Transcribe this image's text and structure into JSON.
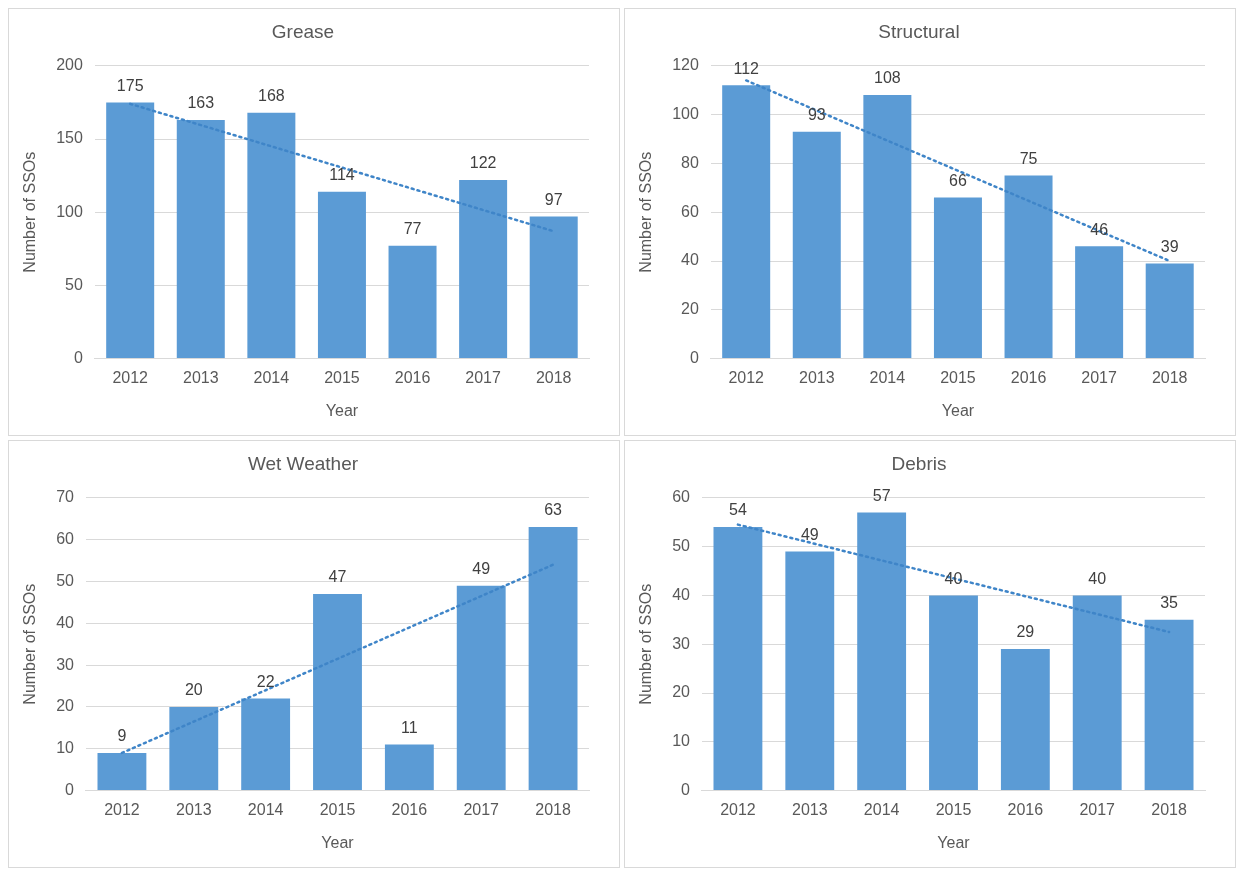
{
  "chart_data": [
    {
      "type": "bar",
      "title": "Grease",
      "xlabel": "Year",
      "ylabel": "Number of SSOs",
      "categories": [
        "2012",
        "2013",
        "2014",
        "2015",
        "2016",
        "2017",
        "2018"
      ],
      "series": [
        {
          "color": "#5b9bd5",
          "values": [
            175,
            163,
            168,
            114,
            77,
            122,
            97
          ],
          "value_labels": [
            "175",
            "163",
            "168",
            "114",
            "77",
            "122",
            "97"
          ]
        },
        {
          "type": "line",
          "color": "#3f85c8",
          "values": [
            174,
            null,
            null,
            null,
            null,
            null,
            87
          ],
          "line_style": "dotted",
          "marker": "none"
        }
      ],
      "ylim": [
        0,
        200
      ],
      "yticks": [
        0,
        50,
        100,
        150,
        200
      ],
      "grid": "y",
      "legend": false
    },
    {
      "type": "bar",
      "title": "Structural",
      "xlabel": "Year",
      "ylabel": "Number of SSOs",
      "categories": [
        "2012",
        "2013",
        "2014",
        "2015",
        "2016",
        "2017",
        "2018"
      ],
      "series": [
        {
          "color": "#5b9bd5",
          "values": [
            112,
            93,
            108,
            66,
            75,
            46,
            39
          ],
          "value_labels": [
            "112",
            "93",
            "108",
            "66",
            "75",
            "46",
            "39"
          ]
        },
        {
          "type": "line",
          "color": "#3f85c8",
          "values": [
            114,
            null,
            null,
            null,
            null,
            null,
            40
          ],
          "line_style": "dotted",
          "marker": "none"
        }
      ],
      "ylim": [
        0,
        120
      ],
      "yticks": [
        0,
        20,
        40,
        60,
        80,
        100,
        120
      ],
      "grid": "y",
      "legend": false
    },
    {
      "type": "bar",
      "title": "Wet Weather",
      "xlabel": "Year",
      "ylabel": "Number of SSOs",
      "categories": [
        "2012",
        "2013",
        "2014",
        "2015",
        "2016",
        "2017",
        "2018"
      ],
      "series": [
        {
          "color": "#5b9bd5",
          "values": [
            9,
            20,
            22,
            47,
            11,
            49,
            63
          ],
          "value_labels": [
            "9",
            "20",
            "22",
            "47",
            "11",
            "49",
            "63"
          ]
        },
        {
          "type": "line",
          "color": "#3f85c8",
          "values": [
            9,
            null,
            null,
            null,
            null,
            null,
            54
          ],
          "line_style": "dotted",
          "marker": "none"
        }
      ],
      "ylim": [
        0,
        70
      ],
      "yticks": [
        0,
        10,
        20,
        30,
        40,
        50,
        60,
        70
      ],
      "grid": "y",
      "legend": false
    },
    {
      "type": "bar",
      "title": "Debris",
      "xlabel": "Year",
      "ylabel": "Number of SSOs",
      "categories": [
        "2012",
        "2013",
        "2014",
        "2015",
        "2016",
        "2017",
        "2018"
      ],
      "series": [
        {
          "color": "#5b9bd5",
          "values": [
            54,
            49,
            57,
            40,
            29,
            40,
            35
          ],
          "value_labels": [
            "54",
            "49",
            "57",
            "40",
            "29",
            "40",
            "35"
          ]
        },
        {
          "type": "line",
          "color": "#3f85c8",
          "values": [
            54.5,
            null,
            null,
            null,
            null,
            null,
            32.5
          ],
          "line_style": "dotted",
          "marker": "none"
        }
      ],
      "ylim": [
        0,
        60
      ],
      "yticks": [
        0,
        10,
        20,
        30,
        40,
        50,
        60
      ],
      "grid": "y",
      "legend": false
    }
  ]
}
